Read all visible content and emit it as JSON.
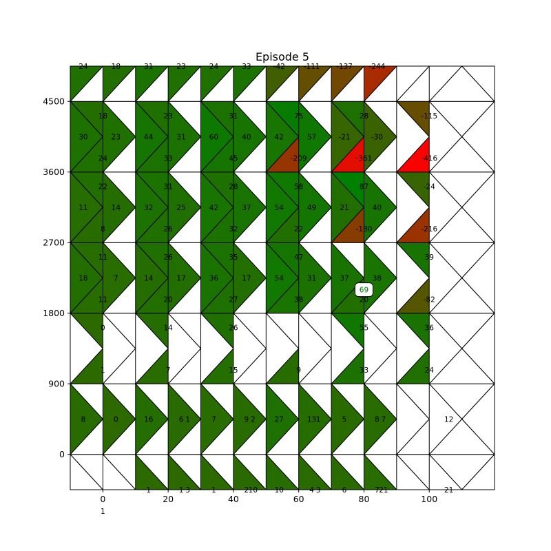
{
  "chart_data": {
    "type": "heatmap",
    "title": "Episode 5",
    "xlim": [
      -10,
      120
    ],
    "ylim": [
      -450,
      4950
    ],
    "x_ticks": [
      0,
      20,
      40,
      60,
      80,
      100
    ],
    "y_ticks": [
      0,
      900,
      1800,
      2700,
      3600,
      4500
    ],
    "x_step": 20,
    "y_step": 900,
    "colors": {
      "positive": "#008000",
      "negative": "#ff0000",
      "empty": "#ffffff",
      "edge": "#000000"
    },
    "marker": {
      "x": 80,
      "y": 2100,
      "label": "69",
      "color": "#008000"
    },
    "cells": [
      [
        1,
        4,
        8,
        9,
        10,
        11,
        12,
        13,
        16,
        17,
        19,
        20,
        21
      ],
      [
        3,
        5,
        9,
        10,
        14,
        15,
        16,
        17,
        19,
        20,
        21,
        22,
        24
      ],
      [
        1,
        2,
        4,
        5,
        6,
        7,
        9,
        10,
        14,
        15,
        18,
        19,
        22,
        23
      ],
      [
        0,
        1,
        2,
        5,
        6,
        7,
        8,
        9,
        10,
        11,
        14,
        15,
        16
      ],
      [
        3,
        4,
        5,
        7,
        9,
        11,
        12,
        13,
        16,
        17,
        18,
        19,
        20,
        21,
        22,
        23,
        24
      ],
      [
        1,
        3,
        4,
        6,
        8,
        9,
        12,
        13,
        14,
        15,
        17,
        18,
        20,
        21
      ],
      [
        0,
        3,
        5,
        8,
        9,
        11,
        12,
        13,
        15,
        16,
        17,
        21,
        23,
        24
      ],
      [
        1,
        2,
        3,
        4,
        5,
        6,
        9,
        10,
        12,
        14,
        15,
        16,
        19,
        20,
        22
      ],
      [
        3,
        4,
        5,
        6,
        7,
        8,
        9,
        10,
        12,
        13,
        15,
        17,
        18,
        19,
        20
      ],
      [
        0,
        1,
        2,
        4,
        5,
        6,
        8,
        9,
        10,
        11,
        14,
        15,
        17,
        18
      ],
      [
        0,
        1,
        2,
        4,
        5,
        6,
        8,
        9,
        10,
        11,
        12,
        13,
        14,
        16,
        18,
        19,
        20,
        22,
        23,
        24
      ],
      [
        1,
        2,
        3,
        4,
        5,
        6,
        7,
        8,
        11,
        12,
        13,
        14,
        15,
        17,
        18,
        19,
        20,
        21,
        22
      ]
    ],
    "values": [
      [
        1,
        1,
        1,
        1,
        2,
        3,
        10,
        4,
        21,
        6,
        7,
        21,
        21
      ],
      [
        3,
        1,
        10,
        2,
        1,
        27,
        3,
        13,
        5,
        7,
        8,
        12,
        21
      ],
      [
        0,
        8,
        14,
        0,
        16,
        6,
        26,
        7,
        9,
        27,
        13,
        55,
        5,
        36
      ],
      [
        1,
        18,
        7,
        7,
        14,
        17,
        15,
        36,
        17,
        9,
        31,
        33,
        37
      ],
      [
        18,
        7,
        7,
        14,
        36,
        17,
        54,
        9,
        47,
        31,
        69,
        33,
        37,
        39,
        38,
        24,
        24
      ],
      [
        11,
        14,
        20,
        32,
        27,
        42,
        37,
        38,
        54,
        49,
        21,
        20,
        40,
        39
      ],
      [
        22,
        14,
        31,
        25,
        28,
        37,
        58,
        54,
        87,
        49,
        21,
        40,
        -24,
        -82
      ],
      [
        30,
        8,
        23,
        26,
        31,
        32,
        60,
        40,
        42,
        22,
        57,
        -180,
        -30,
        -216,
        -24
      ],
      [
        18,
        30,
        23,
        44,
        31,
        31,
        60,
        40,
        42,
        57,
        28,
        -21,
        -30,
        -115,
        -216
      ],
      [
        24,
        24,
        18,
        31,
        33,
        23,
        45,
        24,
        31,
        33,
        75,
        28,
        -115,
        -416
      ],
      [
        24,
        24,
        18,
        31,
        23,
        23,
        24,
        33,
        45,
        -209,
        -209,
        -42,
        -111,
        -361,
        -111,
        -137,
        -244,
        -137,
        -244,
        -416
      ],
      [
        24,
        18,
        18,
        31,
        31,
        23,
        24,
        33,
        -42,
        -42,
        -111,
        -137,
        -137,
        -244,
        -244,
        -244,
        -416,
        -416,
        -416
      ]
    ],
    "labels": [
      {
        "x": 0,
        "y": -450,
        "tri": 2,
        "text": "1"
      },
      {
        "x": 20,
        "y": -450,
        "tri": 1,
        "text": "3"
      },
      {
        "x": 20,
        "y": -450,
        "tri": 3,
        "text": "1"
      },
      {
        "x": 30,
        "y": -450,
        "tri": 3,
        "text": "1"
      },
      {
        "x": 40,
        "y": -450,
        "tri": 1,
        "text": "10"
      },
      {
        "x": 40,
        "y": -450,
        "tri": 3,
        "text": "1"
      },
      {
        "x": 50,
        "y": -450,
        "tri": 3,
        "text": "2"
      },
      {
        "x": 60,
        "y": -450,
        "tri": 1,
        "text": "3"
      },
      {
        "x": 60,
        "y": -450,
        "tri": 3,
        "text": "10"
      },
      {
        "x": 70,
        "y": -450,
        "tri": 3,
        "text": "4"
      },
      {
        "x": 80,
        "y": -450,
        "tri": 1,
        "text": "21"
      },
      {
        "x": 80,
        "y": -450,
        "tri": 3,
        "text": "6"
      },
      {
        "x": 90,
        "y": -450,
        "tri": 3,
        "text": "7"
      },
      {
        "x": 100,
        "y": -450,
        "tri": 1,
        "text": "21"
      },
      {
        "x": 20,
        "y": 450,
        "tri": 1,
        "text": "1"
      },
      {
        "x": 40,
        "y": 450,
        "tri": 1,
        "text": "2"
      },
      {
        "x": 60,
        "y": 450,
        "tri": 1,
        "text": "1"
      },
      {
        "x": 80,
        "y": 450,
        "tri": 1,
        "text": "7"
      },
      {
        "x": 100,
        "y": 450,
        "tri": 1,
        "text": "12"
      },
      {
        "x": 0,
        "y": 450,
        "tri": 3,
        "text": "8"
      },
      {
        "x": 10,
        "y": 450,
        "tri": 3,
        "text": "0"
      },
      {
        "x": 20,
        "y": 450,
        "tri": 3,
        "text": "16"
      },
      {
        "x": 30,
        "y": 450,
        "tri": 3,
        "text": "6"
      },
      {
        "x": 40,
        "y": 450,
        "tri": 3,
        "text": "7"
      },
      {
        "x": 50,
        "y": 450,
        "tri": 3,
        "text": "9"
      },
      {
        "x": 60,
        "y": 450,
        "tri": 3,
        "text": "27"
      },
      {
        "x": 70,
        "y": 450,
        "tri": 3,
        "text": "13"
      },
      {
        "x": 80,
        "y": 450,
        "tri": 3,
        "text": "5"
      },
      {
        "x": 90,
        "y": 450,
        "tri": 3,
        "text": "8"
      },
      {
        "x": 0,
        "y": 1350,
        "tri": 0,
        "text": "0"
      },
      {
        "x": 20,
        "y": 1350,
        "tri": 0,
        "text": "14"
      },
      {
        "x": 40,
        "y": 1350,
        "tri": 0,
        "text": "26"
      },
      {
        "x": 80,
        "y": 1350,
        "tri": 0,
        "text": "55"
      },
      {
        "x": 100,
        "y": 1350,
        "tri": 0,
        "text": "36"
      },
      {
        "x": 0,
        "y": 1350,
        "tri": 2,
        "text": "1"
      },
      {
        "x": 20,
        "y": 1350,
        "tri": 2,
        "text": "7"
      },
      {
        "x": 40,
        "y": 1350,
        "tri": 2,
        "text": "15"
      },
      {
        "x": 60,
        "y": 1350,
        "tri": 2,
        "text": "9"
      },
      {
        "x": 80,
        "y": 1350,
        "tri": 2,
        "text": "33"
      },
      {
        "x": 100,
        "y": 1350,
        "tri": 2,
        "text": "24"
      },
      {
        "x": 0,
        "y": 2250,
        "tri": 3,
        "text": "18"
      },
      {
        "x": 10,
        "y": 2250,
        "tri": 3,
        "text": "7"
      },
      {
        "x": 20,
        "y": 2250,
        "tri": 3,
        "text": "14"
      },
      {
        "x": 30,
        "y": 2250,
        "tri": 3,
        "text": "17"
      },
      {
        "x": 40,
        "y": 2250,
        "tri": 3,
        "text": "36"
      },
      {
        "x": 50,
        "y": 2250,
        "tri": 3,
        "text": "17"
      },
      {
        "x": 60,
        "y": 2250,
        "tri": 3,
        "text": "54"
      },
      {
        "x": 70,
        "y": 2250,
        "tri": 3,
        "text": "31"
      },
      {
        "x": 80,
        "y": 2250,
        "tri": 3,
        "text": "37"
      },
      {
        "x": 90,
        "y": 2250,
        "tri": 3,
        "text": "38"
      },
      {
        "x": 0,
        "y": 2250,
        "tri": 0,
        "text": "11"
      },
      {
        "x": 20,
        "y": 2250,
        "tri": 0,
        "text": "26"
      },
      {
        "x": 40,
        "y": 2250,
        "tri": 0,
        "text": "35"
      },
      {
        "x": 60,
        "y": 2250,
        "tri": 0,
        "text": "47"
      },
      {
        "x": 100,
        "y": 2250,
        "tri": 0,
        "text": "39"
      },
      {
        "x": 0,
        "y": 2250,
        "tri": 2,
        "text": "11"
      },
      {
        "x": 20,
        "y": 2250,
        "tri": 2,
        "text": "20"
      },
      {
        "x": 40,
        "y": 2250,
        "tri": 2,
        "text": "27"
      },
      {
        "x": 60,
        "y": 2250,
        "tri": 2,
        "text": "38"
      },
      {
        "x": 80,
        "y": 2250,
        "tri": 2,
        "text": "20"
      },
      {
        "x": 100,
        "y": 2250,
        "tri": 2,
        "text": "-82"
      },
      {
        "x": 0,
        "y": 3150,
        "tri": 3,
        "text": "11"
      },
      {
        "x": 10,
        "y": 3150,
        "tri": 3,
        "text": "14"
      },
      {
        "x": 20,
        "y": 3150,
        "tri": 3,
        "text": "32"
      },
      {
        "x": 30,
        "y": 3150,
        "tri": 3,
        "text": "25"
      },
      {
        "x": 40,
        "y": 3150,
        "tri": 3,
        "text": "42"
      },
      {
        "x": 50,
        "y": 3150,
        "tri": 3,
        "text": "37"
      },
      {
        "x": 60,
        "y": 3150,
        "tri": 3,
        "text": "54"
      },
      {
        "x": 70,
        "y": 3150,
        "tri": 3,
        "text": "49"
      },
      {
        "x": 80,
        "y": 3150,
        "tri": 3,
        "text": "21"
      },
      {
        "x": 90,
        "y": 3150,
        "tri": 3,
        "text": "40"
      },
      {
        "x": 0,
        "y": 3150,
        "tri": 0,
        "text": "22"
      },
      {
        "x": 20,
        "y": 3150,
        "tri": 0,
        "text": "31"
      },
      {
        "x": 40,
        "y": 3150,
        "tri": 0,
        "text": "28"
      },
      {
        "x": 60,
        "y": 3150,
        "tri": 0,
        "text": "58"
      },
      {
        "x": 80,
        "y": 3150,
        "tri": 0,
        "text": "87"
      },
      {
        "x": 100,
        "y": 3150,
        "tri": 0,
        "text": "-24"
      },
      {
        "x": 0,
        "y": 3150,
        "tri": 2,
        "text": "8"
      },
      {
        "x": 20,
        "y": 3150,
        "tri": 2,
        "text": "26"
      },
      {
        "x": 40,
        "y": 3150,
        "tri": 2,
        "text": "32"
      },
      {
        "x": 60,
        "y": 3150,
        "tri": 2,
        "text": "22"
      },
      {
        "x": 80,
        "y": 3150,
        "tri": 2,
        "text": "-180"
      },
      {
        "x": 100,
        "y": 3150,
        "tri": 2,
        "text": "-216"
      },
      {
        "x": 0,
        "y": 4050,
        "tri": 3,
        "text": "30"
      },
      {
        "x": 10,
        "y": 4050,
        "tri": 3,
        "text": "23"
      },
      {
        "x": 20,
        "y": 4050,
        "tri": 3,
        "text": "44"
      },
      {
        "x": 30,
        "y": 4050,
        "tri": 3,
        "text": "31"
      },
      {
        "x": 40,
        "y": 4050,
        "tri": 3,
        "text": "60"
      },
      {
        "x": 50,
        "y": 4050,
        "tri": 3,
        "text": "40"
      },
      {
        "x": 60,
        "y": 4050,
        "tri": 3,
        "text": "42"
      },
      {
        "x": 70,
        "y": 4050,
        "tri": 3,
        "text": "57"
      },
      {
        "x": 80,
        "y": 4050,
        "tri": 3,
        "text": "-21"
      },
      {
        "x": 90,
        "y": 4050,
        "tri": 3,
        "text": "-30"
      },
      {
        "x": 0,
        "y": 4050,
        "tri": 0,
        "text": "18"
      },
      {
        "x": 20,
        "y": 4050,
        "tri": 0,
        "text": "23"
      },
      {
        "x": 40,
        "y": 4050,
        "tri": 0,
        "text": "31"
      },
      {
        "x": 60,
        "y": 4050,
        "tri": 0,
        "text": "75"
      },
      {
        "x": 80,
        "y": 4050,
        "tri": 0,
        "text": "28"
      },
      {
        "x": 100,
        "y": 4050,
        "tri": 0,
        "text": "-115"
      },
      {
        "x": 0,
        "y": 4050,
        "tri": 2,
        "text": "24"
      },
      {
        "x": 20,
        "y": 4050,
        "tri": 2,
        "text": "33"
      },
      {
        "x": 40,
        "y": 4050,
        "tri": 2,
        "text": "45"
      },
      {
        "x": 60,
        "y": 4050,
        "tri": 2,
        "text": "-209"
      },
      {
        "x": 80,
        "y": 4050,
        "tri": 2,
        "text": "-361"
      },
      {
        "x": 100,
        "y": 4050,
        "tri": 2,
        "text": "-416"
      },
      {
        "x": 0,
        "y": 4950,
        "tri": 3,
        "text": "24"
      },
      {
        "x": 10,
        "y": 4950,
        "tri": 3,
        "text": "18"
      },
      {
        "x": 20,
        "y": 4950,
        "tri": 3,
        "text": "31"
      },
      {
        "x": 30,
        "y": 4950,
        "tri": 3,
        "text": "23"
      },
      {
        "x": 40,
        "y": 4950,
        "tri": 3,
        "text": "24"
      },
      {
        "x": 50,
        "y": 4950,
        "tri": 3,
        "text": "33"
      },
      {
        "x": 60,
        "y": 4950,
        "tri": 3,
        "text": "-42"
      },
      {
        "x": 70,
        "y": 4950,
        "tri": 3,
        "text": "-111"
      },
      {
        "x": 80,
        "y": 4950,
        "tri": 3,
        "text": "-137"
      },
      {
        "x": 90,
        "y": 4950,
        "tri": 3,
        "text": "-244"
      }
    ]
  }
}
